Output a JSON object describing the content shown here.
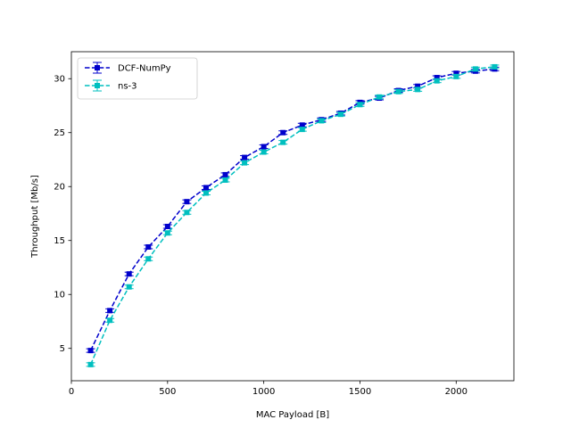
{
  "chart_data": {
    "type": "line",
    "title": "",
    "xlabel": "MAC Payload [B]",
    "ylabel": "Throughput [Mb/s]",
    "xlim": [
      0,
      2300
    ],
    "ylim": [
      2,
      32.5
    ],
    "xticks": [
      0,
      500,
      1000,
      1500,
      2000
    ],
    "yticks": [
      5,
      10,
      15,
      20,
      25,
      30
    ],
    "legend_position": "top-left",
    "grid": false,
    "x": [
      100,
      200,
      300,
      400,
      500,
      600,
      700,
      800,
      900,
      1000,
      1100,
      1200,
      1300,
      1400,
      1500,
      1600,
      1700,
      1800,
      1900,
      2000,
      2100,
      2200
    ],
    "series": [
      {
        "name": "DCF-NumPy",
        "color": "#0000cc",
        "values": [
          4.8,
          8.5,
          11.9,
          14.4,
          16.3,
          18.6,
          19.9,
          21.1,
          22.7,
          23.7,
          25.0,
          25.7,
          26.2,
          26.8,
          27.8,
          28.2,
          28.9,
          29.3,
          30.1,
          30.5,
          30.7,
          30.9
        ]
      },
      {
        "name": "ns-3",
        "color": "#00bfbf",
        "values": [
          3.5,
          7.6,
          10.7,
          13.3,
          15.7,
          17.6,
          19.4,
          20.6,
          22.2,
          23.2,
          24.1,
          25.3,
          26.1,
          26.7,
          27.6,
          28.3,
          28.8,
          29.0,
          29.8,
          30.2,
          30.9,
          31.1
        ]
      }
    ]
  }
}
